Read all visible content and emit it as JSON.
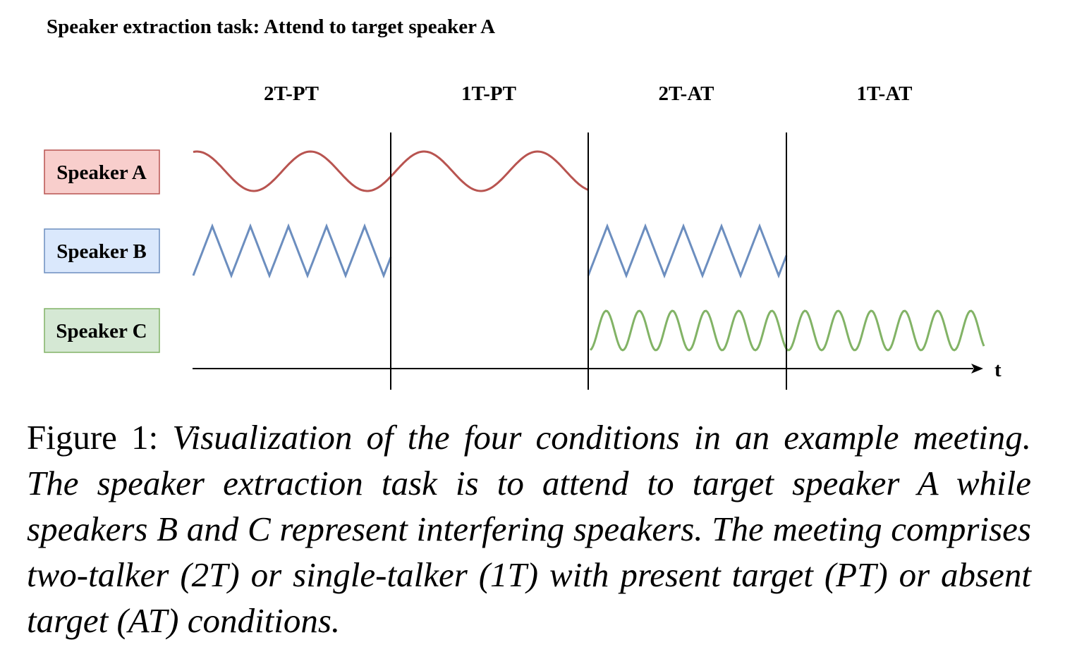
{
  "figure": {
    "title": "Speaker extraction task: Attend to target speaker A",
    "segments": [
      "2T-PT",
      "1T-PT",
      "2T-AT",
      "1T-AT"
    ],
    "time_axis_label": "t",
    "speakers": [
      {
        "label": "Speaker A",
        "fill": "#f8cecc",
        "stroke": "#b85450",
        "wave_color": "#b85450",
        "wave_shape": "sine",
        "active_segments": [
          0,
          1
        ]
      },
      {
        "label": "Speaker B",
        "fill": "#dae8fc",
        "stroke": "#6c8ebf",
        "wave_color": "#6c8ebf",
        "wave_shape": "zigzag",
        "active_segments": [
          0,
          2
        ]
      },
      {
        "label": "Speaker C",
        "fill": "#d5e8d4",
        "stroke": "#82b366",
        "wave_color": "#82b366",
        "wave_shape": "sine",
        "active_segments": [
          2,
          3
        ]
      }
    ]
  },
  "caption": {
    "label": "Figure 1:",
    "text": "Visualization of the four conditions in an example meeting. The speaker extraction task is to attend to target speaker A while speakers B and C represent interfering speakers. The meeting comprises two-talker (2T) or single-talker (1T) with present target (PT) or absent target (AT) conditions."
  }
}
